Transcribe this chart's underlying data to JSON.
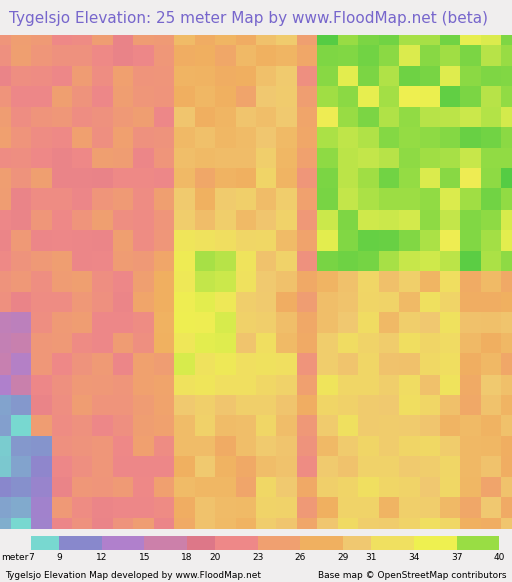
{
  "title": "Tygelsjo Elevation: 25 meter Map by www.FloodMap.net (beta)",
  "title_color": "#7766cc",
  "title_fontsize": 11.0,
  "background_color": "#f0eeee",
  "colorbar_values": [
    7,
    9,
    12,
    15,
    18,
    20,
    23,
    26,
    29,
    31,
    34,
    37,
    40
  ],
  "colorbar_colors": [
    "#78d8d0",
    "#8888cc",
    "#b080cc",
    "#cc80aa",
    "#dd7788",
    "#ee8888",
    "#f0a070",
    "#f0b060",
    "#f0c870",
    "#f0e060",
    "#eef050",
    "#99dd44",
    "#55cc44"
  ],
  "footer_left": "Tygelsjo Elevation Map developed by www.FloodMap.net",
  "footer_right": "Base map © OpenStreetMap contributors",
  "footer_fontsize": 6.5,
  "label_meter": "meter",
  "fig_width": 5.12,
  "fig_height": 5.82,
  "map_noise_seed": 7
}
